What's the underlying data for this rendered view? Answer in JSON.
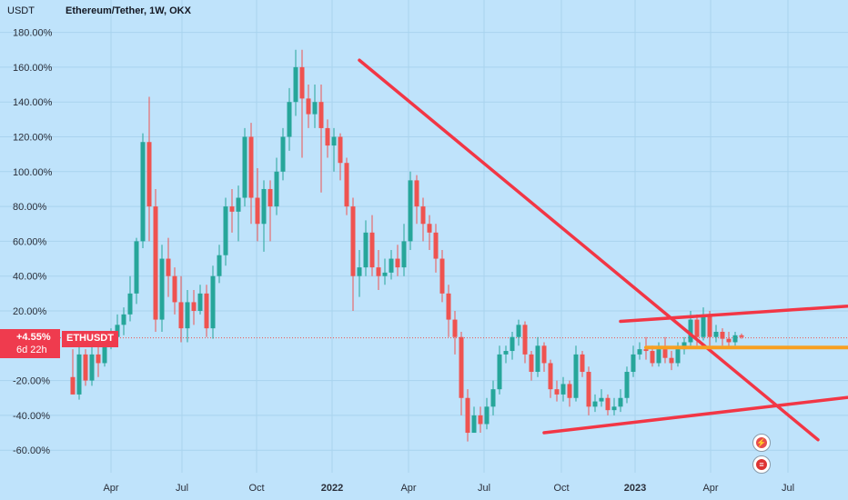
{
  "header": {
    "currency": "USDT",
    "symbol_info": "Ethereum/Tether, 1W, OKX"
  },
  "price_tag": {
    "change": "+4.55%",
    "countdown": "6d 22h",
    "symbol": "ETHUSDT"
  },
  "icons": {
    "flash": "lightning-icon",
    "flag": "us-flag-icon"
  },
  "colors": {
    "background": "#bfe3fb",
    "up": "#26a69a",
    "down": "#ef5350",
    "trendline": "#f23645",
    "support": "#f7a021"
  },
  "chart_data": {
    "type": "candlestick",
    "title": "Ethereum/Tether, 1W, OKX",
    "ylabel": "USDT",
    "y_unit": "%",
    "ylim": [
      -68,
      187
    ],
    "y_ticks": [
      180,
      160,
      140,
      120,
      100,
      80,
      60,
      40,
      20,
      -20,
      -40,
      -60
    ],
    "x_ticks": [
      "Apr",
      "Jul",
      "Oct",
      "2022",
      "Apr",
      "Jul",
      "Oct",
      "2023",
      "Apr",
      "Jul"
    ],
    "xlim_weeks": [
      0,
      135
    ],
    "last_change_pct": 4.55,
    "candles": [
      [
        -18,
        -28,
        -2,
        -28
      ],
      [
        -28,
        -5,
        2,
        -31
      ],
      [
        -5,
        -20,
        -2,
        -23
      ],
      [
        -20,
        -5,
        0,
        -23
      ],
      [
        -5,
        -10,
        0,
        -18
      ],
      [
        -10,
        2,
        6,
        -12
      ],
      [
        2,
        5,
        10,
        -2
      ],
      [
        5,
        12,
        18,
        2
      ],
      [
        12,
        18,
        22,
        6
      ],
      [
        18,
        30,
        40,
        14
      ],
      [
        30,
        60,
        62,
        24
      ],
      [
        60,
        117,
        122,
        56
      ],
      [
        117,
        80,
        143,
        60
      ],
      [
        80,
        15,
        90,
        8
      ],
      [
        15,
        50,
        58,
        8
      ],
      [
        50,
        40,
        62,
        28
      ],
      [
        40,
        25,
        45,
        18
      ],
      [
        25,
        10,
        40,
        2
      ],
      [
        10,
        25,
        32,
        2
      ],
      [
        25,
        20,
        32,
        12
      ],
      [
        20,
        30,
        35,
        18
      ],
      [
        30,
        10,
        35,
        5
      ],
      [
        10,
        40,
        46,
        4
      ],
      [
        40,
        52,
        58,
        36
      ],
      [
        52,
        80,
        85,
        46
      ],
      [
        80,
        77,
        90,
        65
      ],
      [
        77,
        85,
        92,
        60
      ],
      [
        85,
        120,
        125,
        80
      ],
      [
        120,
        85,
        128,
        70
      ],
      [
        85,
        70,
        102,
        60
      ],
      [
        70,
        90,
        95,
        54
      ],
      [
        90,
        80,
        95,
        60
      ],
      [
        80,
        100,
        108,
        75
      ],
      [
        100,
        120,
        125,
        95
      ],
      [
        120,
        140,
        148,
        112
      ],
      [
        140,
        160,
        170,
        132
      ],
      [
        160,
        142,
        170,
        108
      ],
      [
        142,
        133,
        150,
        125
      ],
      [
        133,
        140,
        150,
        125
      ],
      [
        140,
        125,
        150,
        88
      ],
      [
        125,
        115,
        130,
        108
      ],
      [
        115,
        120,
        125,
        100
      ],
      [
        120,
        105,
        122,
        95
      ],
      [
        105,
        80,
        108,
        75
      ],
      [
        80,
        40,
        85,
        20
      ],
      [
        40,
        45,
        55,
        28
      ],
      [
        45,
        65,
        72,
        40
      ],
      [
        65,
        45,
        75,
        40
      ],
      [
        45,
        40,
        55,
        32
      ],
      [
        40,
        42,
        50,
        35
      ],
      [
        42,
        50,
        55,
        38
      ],
      [
        50,
        45,
        58,
        40
      ],
      [
        45,
        60,
        70,
        40
      ],
      [
        60,
        95,
        100,
        55
      ],
      [
        95,
        80,
        98,
        70
      ],
      [
        80,
        70,
        85,
        60
      ],
      [
        70,
        65,
        75,
        55
      ],
      [
        65,
        50,
        70,
        42
      ],
      [
        50,
        30,
        55,
        25
      ],
      [
        30,
        15,
        35,
        5
      ],
      [
        15,
        5,
        20,
        -5
      ],
      [
        5,
        -30,
        8,
        -40
      ],
      [
        -30,
        -50,
        -25,
        -55
      ],
      [
        -50,
        -40,
        -35,
        -50
      ],
      [
        -40,
        -45,
        -35,
        -50
      ],
      [
        -45,
        -35,
        -30,
        -48
      ],
      [
        -35,
        -25,
        -20,
        -40
      ],
      [
        -25,
        -5,
        0,
        -28
      ],
      [
        -5,
        -3,
        0,
        -10
      ],
      [
        -3,
        5,
        8,
        -8
      ],
      [
        5,
        12,
        15,
        0
      ],
      [
        12,
        -5,
        14,
        -10
      ],
      [
        -5,
        -15,
        -3,
        -20
      ],
      [
        -15,
        0,
        5,
        -18
      ],
      [
        0,
        -10,
        2,
        -15
      ],
      [
        -10,
        -25,
        -8,
        -30
      ],
      [
        -25,
        -28,
        -20,
        -32
      ],
      [
        -28,
        -22,
        -18,
        -32
      ],
      [
        -22,
        -30,
        -20,
        -35
      ],
      [
        -30,
        -5,
        0,
        -32
      ],
      [
        -5,
        -15,
        -3,
        -18
      ],
      [
        -15,
        -35,
        -12,
        -40
      ],
      [
        -35,
        -32,
        -28,
        -38
      ],
      [
        -32,
        -30,
        -25,
        -35
      ],
      [
        -30,
        -37,
        -28,
        -40
      ],
      [
        -37,
        -35,
        -30,
        -40
      ],
      [
        -35,
        -30,
        -25,
        -38
      ],
      [
        -30,
        -15,
        -12,
        -33
      ],
      [
        -15,
        -5,
        0,
        -18
      ],
      [
        -5,
        -2,
        2,
        -8
      ],
      [
        -2,
        -3,
        5,
        -8
      ],
      [
        -3,
        -10,
        0,
        -12
      ],
      [
        -10,
        -2,
        2,
        -12
      ],
      [
        -2,
        -7,
        5,
        -10
      ],
      [
        -7,
        -10,
        -3,
        -14
      ],
      [
        -10,
        -2,
        2,
        -12
      ],
      [
        -2,
        2,
        5,
        -5
      ],
      [
        2,
        15,
        20,
        0
      ],
      [
        15,
        5,
        18,
        0
      ],
      [
        5,
        18,
        22,
        3
      ],
      [
        18,
        5,
        20,
        0
      ],
      [
        5,
        8,
        12,
        2
      ],
      [
        8,
        4,
        10,
        0
      ],
      [
        4,
        2,
        8,
        -1
      ],
      [
        2,
        6,
        8,
        0
      ],
      [
        6,
        5,
        7,
        4
      ]
    ],
    "trendlines": [
      {
        "name": "descending-resistance",
        "from": [
          45,
          164
        ],
        "to": [
          117,
          -54
        ]
      },
      {
        "name": "upper-channel",
        "from": [
          86,
          14
        ],
        "to": [
          135,
          26
        ]
      },
      {
        "name": "lower-channel",
        "from": [
          74,
          -50
        ],
        "to": [
          135,
          -24
        ]
      },
      {
        "name": "horizontal-support",
        "from": [
          90,
          -1
        ],
        "to": [
          134,
          -1
        ]
      }
    ]
  }
}
